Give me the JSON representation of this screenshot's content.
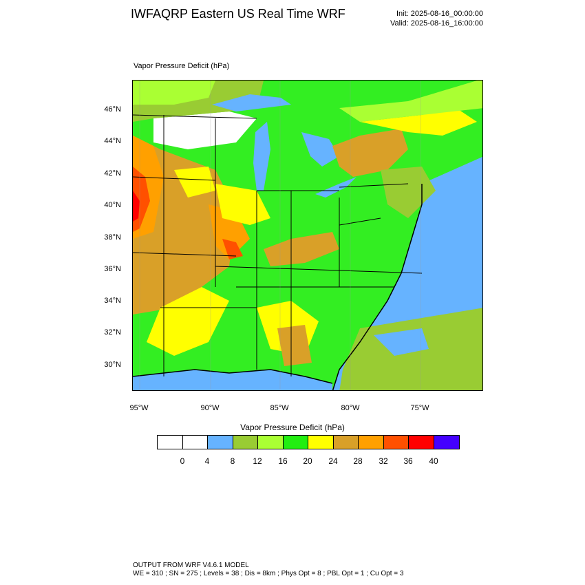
{
  "header": {
    "title": "IWFAQRP Eastern US Real Time WRF",
    "init": "Init: 2025-08-16_00:00:00",
    "valid": "Valid: 2025-08-16_16:00:00"
  },
  "map": {
    "field_label": "Vapor Pressure Deficit   (hPa)",
    "lat_labels": [
      "46°N",
      "44°N",
      "42°N",
      "40°N",
      "38°N",
      "36°N",
      "34°N",
      "32°N",
      "30°N"
    ],
    "lon_labels": [
      "95°W",
      "90°W",
      "85°W",
      "80°W",
      "75°W"
    ],
    "colors": {
      "water": "#66b3ff",
      "white": "#ffffff",
      "light_green": "#99cc33",
      "lime": "#aaff33",
      "green": "#33ee22",
      "yellow": "#ffff00",
      "tan": "#d9a028",
      "orange": "#ffa000",
      "red_orange": "#ff5000",
      "red": "#ff0000"
    }
  },
  "colorbar": {
    "title": "Vapor Pressure Deficit   (hPa)",
    "ticks": [
      "0",
      "4",
      "8",
      "12",
      "16",
      "20",
      "24",
      "28",
      "32",
      "36",
      "40"
    ],
    "colors": [
      "#ffffff",
      "#ffffff",
      "#66b3ff",
      "#99cc33",
      "#aaff33",
      "#22ee11",
      "#ffff00",
      "#d9a028",
      "#ffa000",
      "#ff5000",
      "#ff0000",
      "#4400ff"
    ]
  },
  "footer": {
    "line1": "OUTPUT FROM WRF V4.6.1 MODEL",
    "line2": "WE = 310 ; SN = 275 ; Levels = 38 ; Dis = 8km ; Phys Opt = 8 ; PBL Opt = 1 ; Cu Opt = 3"
  }
}
